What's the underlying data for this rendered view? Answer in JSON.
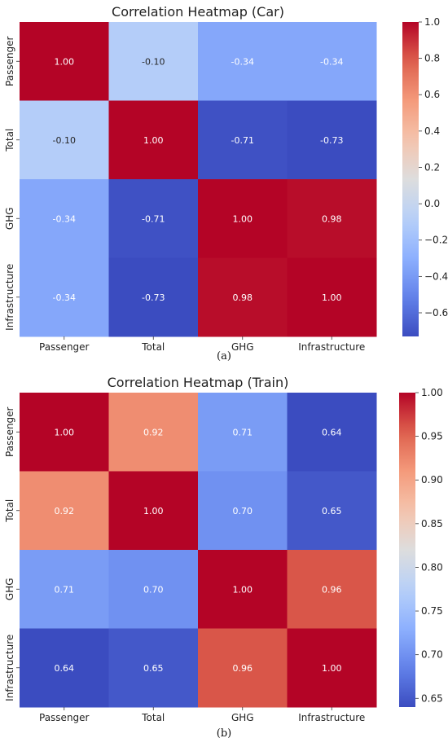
{
  "chart_data": [
    {
      "type": "heatmap",
      "title": "Correlation Heatmap (Car)",
      "caption": "(a)",
      "rows": [
        "Passenger",
        "Total",
        "GHG",
        "Infrastructure"
      ],
      "columns": [
        "Passenger",
        "Total",
        "GHG",
        "Infrastructure"
      ],
      "values": [
        [
          1.0,
          -0.1,
          -0.34,
          -0.34
        ],
        [
          -0.1,
          1.0,
          -0.71,
          -0.73
        ],
        [
          -0.34,
          -0.71,
          1.0,
          0.98
        ],
        [
          -0.34,
          -0.73,
          0.98,
          1.0
        ]
      ],
      "value_format": "2dp",
      "colormap": "coolwarm",
      "color_range": [
        -0.73,
        1.0
      ],
      "colorbar_ticks": [
        1.0,
        0.8,
        0.6,
        0.4,
        0.2,
        0.0,
        -0.2,
        -0.4,
        -0.6
      ],
      "colorbar_tick_labels": [
        "1.0",
        "0.8",
        "0.6",
        "0.4",
        "0.2",
        "0.0",
        "−0.2",
        "−0.4",
        "−0.6"
      ]
    },
    {
      "type": "heatmap",
      "title": "Correlation Heatmap (Train)",
      "caption": "(b)",
      "rows": [
        "Passenger",
        "Total",
        "GHG",
        "Infrastructure"
      ],
      "columns": [
        "Passenger",
        "Total",
        "GHG",
        "Infrastructure"
      ],
      "values": [
        [
          1.0,
          0.92,
          0.71,
          0.64
        ],
        [
          0.92,
          1.0,
          0.7,
          0.65
        ],
        [
          0.71,
          0.7,
          1.0,
          0.96
        ],
        [
          0.64,
          0.65,
          0.96,
          1.0
        ]
      ],
      "value_format": "2dp",
      "colormap": "coolwarm",
      "color_range": [
        0.64,
        1.0
      ],
      "colorbar_ticks": [
        1.0,
        0.95,
        0.9,
        0.85,
        0.8,
        0.75,
        0.7,
        0.65
      ],
      "colorbar_tick_labels": [
        "1.00",
        "0.95",
        "0.90",
        "0.85",
        "0.80",
        "0.75",
        "0.70",
        "0.65"
      ]
    }
  ]
}
